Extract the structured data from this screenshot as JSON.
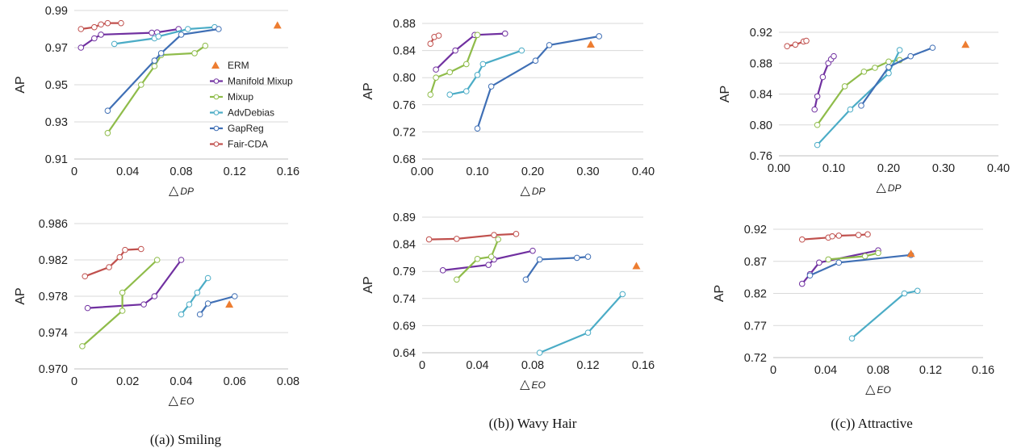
{
  "panels": [
    {
      "caption": "((a)) Smiling"
    },
    {
      "caption": "((b)) Wavy Hair"
    },
    {
      "caption": "((c)) Attractive"
    }
  ],
  "legend": {
    "items": [
      {
        "label": "ERM",
        "color": "#ED7D31",
        "marker": "triangle"
      },
      {
        "label": "Manifold Mixup",
        "color": "#7030A0",
        "marker": "line"
      },
      {
        "label": "Mixup",
        "color": "#8FBC4A",
        "marker": "line"
      },
      {
        "label": "AdvDebias",
        "color": "#4BACC6",
        "marker": "line"
      },
      {
        "label": "GapReg",
        "color": "#3F6FB5",
        "marker": "line"
      },
      {
        "label": "Fair-CDA",
        "color": "#C0504D",
        "marker": "line"
      }
    ]
  },
  "chart_data": [
    {
      "type": "line",
      "panel": "Smiling",
      "xlabel": "△DP",
      "ylabel": "AP",
      "xlim": [
        0,
        0.16
      ],
      "ylim": [
        0.91,
        0.99
      ],
      "xticks": [
        "0",
        "0.04",
        "0.08",
        "0.12",
        "0.16"
      ],
      "yticks": [
        "0.91",
        "0.93",
        "0.95",
        "0.97",
        "0.99"
      ],
      "grid": "horizontal",
      "legend_position": "right",
      "erm": [
        0.152,
        0.982
      ],
      "series": [
        {
          "name": "Manifold Mixup",
          "color": "#7030A0",
          "points": [
            [
              0.005,
              0.97
            ],
            [
              0.015,
              0.975
            ],
            [
              0.02,
              0.977
            ],
            [
              0.058,
              0.978
            ],
            [
              0.062,
              0.9782
            ],
            [
              0.078,
              0.98
            ]
          ]
        },
        {
          "name": "Mixup",
          "color": "#8FBC4A",
          "points": [
            [
              0.025,
              0.924
            ],
            [
              0.05,
              0.95
            ],
            [
              0.06,
              0.96
            ],
            [
              0.065,
              0.966
            ],
            [
              0.09,
              0.967
            ],
            [
              0.098,
              0.971
            ]
          ]
        },
        {
          "name": "AdvDebias",
          "color": "#4BACC6",
          "points": [
            [
              0.03,
              0.972
            ],
            [
              0.06,
              0.975
            ],
            [
              0.063,
              0.976
            ],
            [
              0.085,
              0.98
            ],
            [
              0.105,
              0.981
            ]
          ]
        },
        {
          "name": "GapReg",
          "color": "#3F6FB5",
          "points": [
            [
              0.025,
              0.936
            ],
            [
              0.06,
              0.963
            ],
            [
              0.065,
              0.967
            ],
            [
              0.08,
              0.977
            ],
            [
              0.108,
              0.98
            ]
          ]
        },
        {
          "name": "Fair-CDA",
          "color": "#C0504D",
          "points": [
            [
              0.005,
              0.98
            ],
            [
              0.015,
              0.981
            ],
            [
              0.02,
              0.9825
            ],
            [
              0.025,
              0.9832
            ],
            [
              0.035,
              0.9832
            ]
          ]
        }
      ]
    },
    {
      "type": "line",
      "panel": "Wavy Hair",
      "xlabel": "△DP",
      "ylabel": "AP",
      "xlim": [
        0,
        0.4
      ],
      "ylim": [
        0.68,
        0.88
      ],
      "xticks": [
        "0.00",
        "0.10",
        "0.20",
        "0.30",
        "0.40"
      ],
      "yticks": [
        "0.68",
        "0.72",
        "0.76",
        "0.80",
        "0.84",
        "0.88"
      ],
      "grid": "horizontal",
      "erm": [
        0.305,
        0.849
      ],
      "series": [
        {
          "name": "Manifold Mixup",
          "color": "#7030A0",
          "points": [
            [
              0.025,
              0.812
            ],
            [
              0.06,
              0.84
            ],
            [
              0.095,
              0.863
            ],
            [
              0.15,
              0.865
            ]
          ]
        },
        {
          "name": "Mixup",
          "color": "#8FBC4A",
          "points": [
            [
              0.015,
              0.775
            ],
            [
              0.025,
              0.8
            ],
            [
              0.05,
              0.808
            ],
            [
              0.08,
              0.82
            ],
            [
              0.1,
              0.863
            ]
          ]
        },
        {
          "name": "AdvDebias",
          "color": "#4BACC6",
          "points": [
            [
              0.05,
              0.775
            ],
            [
              0.08,
              0.78
            ],
            [
              0.1,
              0.804
            ],
            [
              0.11,
              0.82
            ],
            [
              0.18,
              0.84
            ]
          ]
        },
        {
          "name": "GapReg",
          "color": "#3F6FB5",
          "points": [
            [
              0.1,
              0.725
            ],
            [
              0.125,
              0.787
            ],
            [
              0.205,
              0.825
            ],
            [
              0.23,
              0.848
            ],
            [
              0.32,
              0.861
            ]
          ]
        },
        {
          "name": "Fair-CDA",
          "color": "#C0504D",
          "points": [
            [
              0.015,
              0.85
            ],
            [
              0.022,
              0.86
            ],
            [
              0.03,
              0.862
            ]
          ]
        }
      ]
    },
    {
      "type": "line",
      "panel": "Attractive",
      "xlabel": "△DP",
      "ylabel": "AP",
      "xlim": [
        0,
        0.4
      ],
      "ylim": [
        0.76,
        0.92
      ],
      "xticks": [
        "0.00",
        "0.10",
        "0.20",
        "0.30",
        "0.40"
      ],
      "yticks": [
        "0.76",
        "0.80",
        "0.84",
        "0.88",
        "0.92"
      ],
      "grid": "horizontal",
      "erm": [
        0.34,
        0.904
      ],
      "series": [
        {
          "name": "Manifold Mixup",
          "color": "#7030A0",
          "points": [
            [
              0.065,
              0.82
            ],
            [
              0.07,
              0.837
            ],
            [
              0.08,
              0.862
            ],
            [
              0.09,
              0.88
            ],
            [
              0.095,
              0.885
            ],
            [
              0.1,
              0.889
            ]
          ]
        },
        {
          "name": "Mixup",
          "color": "#8FBC4A",
          "points": [
            [
              0.07,
              0.8
            ],
            [
              0.12,
              0.85
            ],
            [
              0.155,
              0.869
            ],
            [
              0.175,
              0.874
            ],
            [
              0.2,
              0.882
            ],
            [
              0.22,
              0.884
            ]
          ]
        },
        {
          "name": "AdvDebias",
          "color": "#4BACC6",
          "points": [
            [
              0.07,
              0.774
            ],
            [
              0.13,
              0.82
            ],
            [
              0.2,
              0.867
            ],
            [
              0.22,
              0.897
            ]
          ]
        },
        {
          "name": "GapReg",
          "color": "#3F6FB5",
          "points": [
            [
              0.15,
              0.825
            ],
            [
              0.2,
              0.875
            ],
            [
              0.24,
              0.889
            ],
            [
              0.28,
              0.9
            ]
          ]
        },
        {
          "name": "Fair-CDA",
          "color": "#C0504D",
          "points": [
            [
              0.015,
              0.902
            ],
            [
              0.03,
              0.904
            ],
            [
              0.045,
              0.908
            ],
            [
              0.05,
              0.909
            ]
          ]
        }
      ]
    },
    {
      "type": "line",
      "panel": "Smiling",
      "xlabel": "△EO",
      "ylabel": "AP",
      "xlim": [
        0,
        0.08
      ],
      "ylim": [
        0.97,
        0.986
      ],
      "xticks": [
        "0",
        "0.02",
        "0.04",
        "0.06",
        "0.08"
      ],
      "yticks": [
        "0.970",
        "0.974",
        "0.978",
        "0.982",
        "0.986"
      ],
      "grid": "horizontal",
      "erm": [
        0.058,
        0.9771
      ],
      "series": [
        {
          "name": "Manifold Mixup",
          "color": "#7030A0",
          "points": [
            [
              0.005,
              0.9767
            ],
            [
              0.026,
              0.9771
            ],
            [
              0.03,
              0.978
            ],
            [
              0.04,
              0.982
            ]
          ]
        },
        {
          "name": "Mixup",
          "color": "#8FBC4A",
          "points": [
            [
              0.003,
              0.9725
            ],
            [
              0.018,
              0.9764
            ],
            [
              0.018,
              0.9784
            ],
            [
              0.031,
              0.982
            ]
          ]
        },
        {
          "name": "AdvDebias",
          "color": "#4BACC6",
          "points": [
            [
              0.04,
              0.976
            ],
            [
              0.043,
              0.9771
            ],
            [
              0.046,
              0.9784
            ],
            [
              0.05,
              0.98
            ]
          ]
        },
        {
          "name": "GapReg",
          "color": "#3F6FB5",
          "points": [
            [
              0.047,
              0.976
            ],
            [
              0.05,
              0.9772
            ],
            [
              0.06,
              0.978
            ]
          ]
        },
        {
          "name": "Fair-CDA",
          "color": "#C0504D",
          "points": [
            [
              0.004,
              0.9802
            ],
            [
              0.013,
              0.9812
            ],
            [
              0.017,
              0.9823
            ],
            [
              0.019,
              0.9831
            ],
            [
              0.025,
              0.9832
            ]
          ]
        }
      ]
    },
    {
      "type": "line",
      "panel": "Wavy Hair",
      "xlabel": "△EO",
      "ylabel": "AP",
      "xlim": [
        0,
        0.16
      ],
      "ylim": [
        0.64,
        0.89
      ],
      "xticks": [
        "0",
        "0.04",
        "0.08",
        "0.12",
        "0.16"
      ],
      "yticks": [
        "0.64",
        "0.69",
        "0.74",
        "0.79",
        "0.84",
        "0.89"
      ],
      "grid": "horizontal",
      "erm": [
        0.155,
        0.8
      ],
      "series": [
        {
          "name": "Manifold Mixup",
          "color": "#7030A0",
          "points": [
            [
              0.015,
              0.792
            ],
            [
              0.048,
              0.802
            ],
            [
              0.052,
              0.812
            ],
            [
              0.08,
              0.828
            ]
          ]
        },
        {
          "name": "Mixup",
          "color": "#8FBC4A",
          "points": [
            [
              0.025,
              0.775
            ],
            [
              0.04,
              0.813
            ],
            [
              0.05,
              0.817
            ],
            [
              0.055,
              0.849
            ]
          ]
        },
        {
          "name": "AdvDebias",
          "color": "#4BACC6",
          "points": [
            [
              0.085,
              0.64
            ],
            [
              0.12,
              0.677
            ],
            [
              0.145,
              0.748
            ]
          ]
        },
        {
          "name": "GapReg",
          "color": "#3F6FB5",
          "points": [
            [
              0.075,
              0.775
            ],
            [
              0.085,
              0.812
            ],
            [
              0.112,
              0.815
            ],
            [
              0.12,
              0.817
            ]
          ]
        },
        {
          "name": "Fair-CDA",
          "color": "#C0504D",
          "points": [
            [
              0.005,
              0.849
            ],
            [
              0.025,
              0.85
            ],
            [
              0.052,
              0.857
            ],
            [
              0.068,
              0.859
            ]
          ]
        }
      ]
    },
    {
      "type": "line",
      "panel": "Attractive",
      "xlabel": "△EO",
      "ylabel": "AP",
      "xlim": [
        0,
        0.16
      ],
      "ylim": [
        0.72,
        0.92
      ],
      "xticks": [
        "0",
        "0.04",
        "0.08",
        "0.12",
        "0.16"
      ],
      "yticks": [
        "0.72",
        "0.77",
        "0.82",
        "0.87",
        "0.92"
      ],
      "grid": "horizontal",
      "erm": [
        0.105,
        0.882
      ],
      "series": [
        {
          "name": "Manifold Mixup",
          "color": "#7030A0",
          "points": [
            [
              0.022,
              0.835
            ],
            [
              0.028,
              0.85
            ],
            [
              0.035,
              0.868
            ],
            [
              0.08,
              0.887
            ]
          ]
        },
        {
          "name": "Mixup",
          "color": "#8FBC4A",
          "points": [
            [
              0.042,
              0.873
            ],
            [
              0.07,
              0.878
            ],
            [
              0.08,
              0.883
            ]
          ]
        },
        {
          "name": "AdvDebias",
          "color": "#4BACC6",
          "points": [
            [
              0.06,
              0.75
            ],
            [
              0.1,
              0.82
            ],
            [
              0.11,
              0.824
            ]
          ]
        },
        {
          "name": "GapReg",
          "color": "#3F6FB5",
          "points": [
            [
              0.028,
              0.848
            ],
            [
              0.05,
              0.868
            ],
            [
              0.105,
              0.88
            ]
          ]
        },
        {
          "name": "Fair-CDA",
          "color": "#C0504D",
          "points": [
            [
              0.022,
              0.904
            ],
            [
              0.042,
              0.907
            ],
            [
              0.045,
              0.909
            ],
            [
              0.05,
              0.91
            ],
            [
              0.065,
              0.911
            ],
            [
              0.072,
              0.912
            ]
          ]
        }
      ]
    }
  ]
}
